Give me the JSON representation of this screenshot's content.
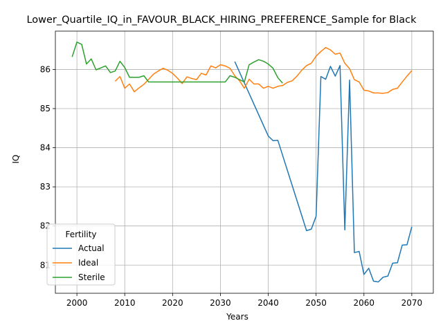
{
  "chart_data": {
    "type": "line",
    "title": "Lower_Quartile_IQ_in_FAVOUR_BLACK_HIRING_PREFERENCE_Sample for Black",
    "xlabel": "Years",
    "ylabel": "IQ",
    "xlim": [
      1995.5,
      2074.5
    ],
    "ylim": [
      80.28,
      86.98
    ],
    "xticks": [
      2000,
      2010,
      2020,
      2030,
      2040,
      2050,
      2060,
      2070
    ],
    "yticks": [
      81,
      82,
      83,
      84,
      85,
      86
    ],
    "grid": true,
    "legend": {
      "title": "Fertility",
      "position": "lower-left"
    },
    "series": [
      {
        "name": "Actual",
        "color": "#1f77b4",
        "points": [
          [
            2033,
            86.2
          ],
          [
            2040,
            84.3
          ],
          [
            2041,
            84.18
          ],
          [
            2042,
            84.19
          ],
          [
            2048,
            81.88
          ],
          [
            2049,
            81.92
          ],
          [
            2050,
            82.25
          ],
          [
            2051,
            85.82
          ],
          [
            2052,
            85.75
          ],
          [
            2053,
            86.08
          ],
          [
            2054,
            85.83
          ],
          [
            2055,
            86.1
          ],
          [
            2056,
            81.9
          ],
          [
            2057,
            85.73
          ],
          [
            2058,
            81.32
          ],
          [
            2059,
            81.35
          ],
          [
            2060,
            80.76
          ],
          [
            2061,
            80.92
          ],
          [
            2062,
            80.59
          ],
          [
            2063,
            80.57
          ],
          [
            2064,
            80.69
          ],
          [
            2065,
            80.72
          ],
          [
            2066,
            81.05
          ],
          [
            2067,
            81.06
          ],
          [
            2068,
            81.51
          ],
          [
            2069,
            81.52
          ],
          [
            2070,
            81.98
          ]
        ]
      },
      {
        "name": "Ideal",
        "color": "#ff7f0e",
        "points": [
          [
            2008,
            85.7
          ],
          [
            2009,
            85.82
          ],
          [
            2010,
            85.52
          ],
          [
            2011,
            85.63
          ],
          [
            2012,
            85.43
          ],
          [
            2013,
            85.53
          ],
          [
            2014,
            85.62
          ],
          [
            2015,
            85.75
          ],
          [
            2016,
            85.88
          ],
          [
            2017,
            85.96
          ],
          [
            2018,
            86.03
          ],
          [
            2019,
            85.98
          ],
          [
            2020,
            85.9
          ],
          [
            2021,
            85.78
          ],
          [
            2022,
            85.64
          ],
          [
            2023,
            85.81
          ],
          [
            2024,
            85.77
          ],
          [
            2025,
            85.74
          ],
          [
            2026,
            85.9
          ],
          [
            2027,
            85.86
          ],
          [
            2028,
            86.09
          ],
          [
            2029,
            86.04
          ],
          [
            2030,
            86.12
          ],
          [
            2031,
            86.09
          ],
          [
            2032,
            86.03
          ],
          [
            2033,
            85.84
          ],
          [
            2034,
            85.71
          ],
          [
            2035,
            85.52
          ],
          [
            2036,
            85.75
          ],
          [
            2037,
            85.63
          ],
          [
            2038,
            85.63
          ],
          [
            2039,
            85.52
          ],
          [
            2040,
            85.57
          ],
          [
            2041,
            85.52
          ],
          [
            2042,
            85.57
          ],
          [
            2043,
            85.59
          ],
          [
            2044,
            85.67
          ],
          [
            2045,
            85.71
          ],
          [
            2046,
            85.83
          ],
          [
            2047,
            85.98
          ],
          [
            2048,
            86.1
          ],
          [
            2049,
            86.16
          ],
          [
            2050,
            86.34
          ],
          [
            2051,
            86.46
          ],
          [
            2052,
            86.56
          ],
          [
            2053,
            86.5
          ],
          [
            2054,
            86.39
          ],
          [
            2055,
            86.42
          ],
          [
            2056,
            86.16
          ],
          [
            2057,
            86.02
          ],
          [
            2058,
            85.74
          ],
          [
            2059,
            85.68
          ],
          [
            2060,
            85.47
          ],
          [
            2061,
            85.45
          ],
          [
            2062,
            85.4
          ],
          [
            2063,
            85.4
          ],
          [
            2064,
            85.39
          ],
          [
            2065,
            85.41
          ],
          [
            2066,
            85.49
          ],
          [
            2067,
            85.52
          ],
          [
            2068,
            85.68
          ],
          [
            2069,
            85.83
          ],
          [
            2070,
            85.97
          ]
        ]
      },
      {
        "name": "Sterile",
        "color": "#2ca02c",
        "points": [
          [
            1999,
            86.32
          ],
          [
            2000,
            86.7
          ],
          [
            2001,
            86.64
          ],
          [
            2002,
            86.14
          ],
          [
            2003,
            86.27
          ],
          [
            2004,
            85.99
          ],
          [
            2005,
            86.04
          ],
          [
            2006,
            86.09
          ],
          [
            2007,
            85.92
          ],
          [
            2008,
            85.96
          ],
          [
            2009,
            86.21
          ],
          [
            2010,
            86.05
          ],
          [
            2011,
            85.8
          ],
          [
            2012,
            85.8
          ],
          [
            2013,
            85.8
          ],
          [
            2014,
            85.84
          ],
          [
            2015,
            85.68
          ],
          [
            2016,
            85.68
          ],
          [
            2017,
            85.68
          ],
          [
            2018,
            85.68
          ],
          [
            2019,
            85.68
          ],
          [
            2020,
            85.68
          ],
          [
            2021,
            85.68
          ],
          [
            2022,
            85.68
          ],
          [
            2023,
            85.68
          ],
          [
            2024,
            85.68
          ],
          [
            2025,
            85.68
          ],
          [
            2026,
            85.68
          ],
          [
            2027,
            85.68
          ],
          [
            2028,
            85.68
          ],
          [
            2029,
            85.68
          ],
          [
            2030,
            85.68
          ],
          [
            2031,
            85.68
          ],
          [
            2032,
            85.84
          ],
          [
            2033,
            85.8
          ],
          [
            2034,
            85.74
          ],
          [
            2035,
            85.68
          ],
          [
            2036,
            86.12
          ],
          [
            2037,
            86.19
          ],
          [
            2038,
            86.25
          ],
          [
            2039,
            86.21
          ],
          [
            2040,
            86.14
          ],
          [
            2041,
            86.03
          ],
          [
            2042,
            85.79
          ],
          [
            2043,
            85.65
          ]
        ]
      }
    ]
  }
}
